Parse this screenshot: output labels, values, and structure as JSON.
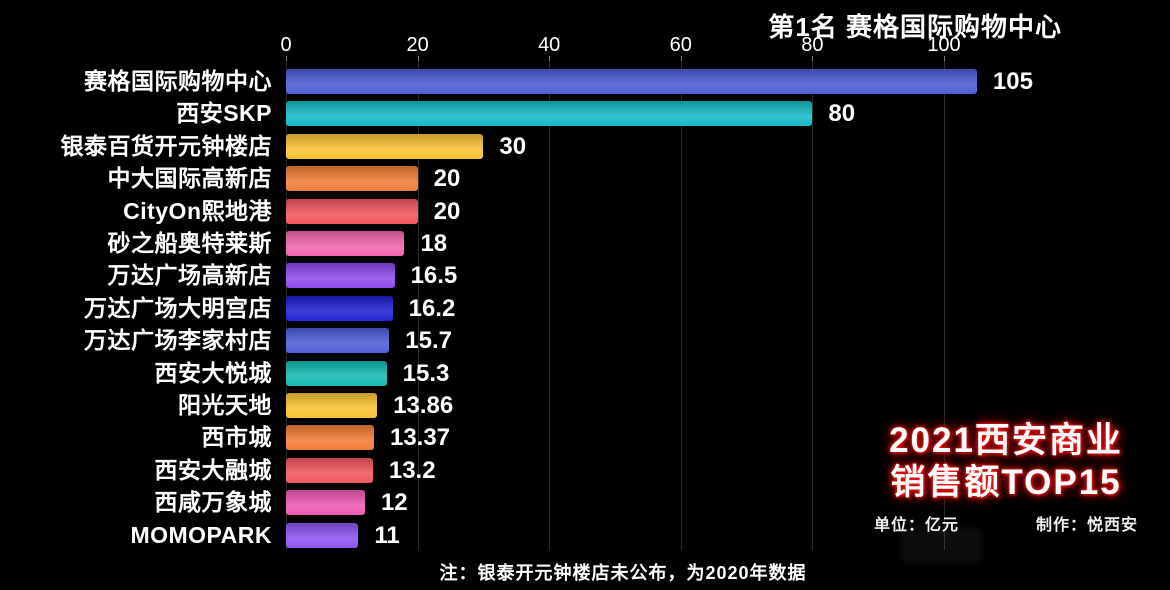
{
  "header": {
    "rank_title": "第1名 赛格国际购物中心"
  },
  "overlay": {
    "title_line1": "2021西安商业",
    "title_line2": "销售额TOP15",
    "unit": "单位：亿元",
    "credit": "制作：悦西安"
  },
  "footer": {
    "note": "注：银泰开元钟楼店未公布，为2020年数据"
  },
  "colors": {
    "background": "#000000",
    "text": "#ffffff",
    "grid": "#3c3c3c",
    "title_glow": "#e00000"
  },
  "chart_data": {
    "type": "bar",
    "orientation": "horizontal",
    "title": "2021西安商业销售额TOP15",
    "unit": "亿元",
    "xlabel": "",
    "ylabel": "",
    "x_ticks": [
      0,
      20,
      40,
      60,
      80,
      100
    ],
    "xlim": [
      0,
      134
    ],
    "grid": true,
    "legend": false,
    "categories": [
      "赛格国际购物中心",
      "西安SKP",
      "银泰百货开元钟楼店",
      "中大国际高新店",
      "CityOn熙地港",
      "砂之船奥特莱斯",
      "万达广场高新店",
      "万达广场大明宫店",
      "万达广场李家村店",
      "西安大悦城",
      "阳光天地",
      "西市城",
      "西安大融城",
      "西咸万象城",
      "MOMOPARK"
    ],
    "values": [
      105,
      80,
      30,
      20,
      20,
      18,
      16.5,
      16.2,
      15.7,
      15.3,
      13.86,
      13.37,
      13.2,
      12,
      11
    ],
    "value_labels": [
      "105",
      "80",
      "30",
      "20",
      "20",
      "18",
      "16.5",
      "16.2",
      "15.7",
      "15.3",
      "13.86",
      "13.37",
      "13.2",
      "12",
      "11"
    ],
    "bar_colors": [
      "#4c5bd6",
      "#14b9c5",
      "#f9c231",
      "#f27c33",
      "#f1555c",
      "#f264ae",
      "#8d49ec",
      "#1d1fd0",
      "#4c5bd6",
      "#12b9b2",
      "#f9c231",
      "#f27c33",
      "#f1555c",
      "#ee58b2",
      "#8b52f0"
    ]
  }
}
